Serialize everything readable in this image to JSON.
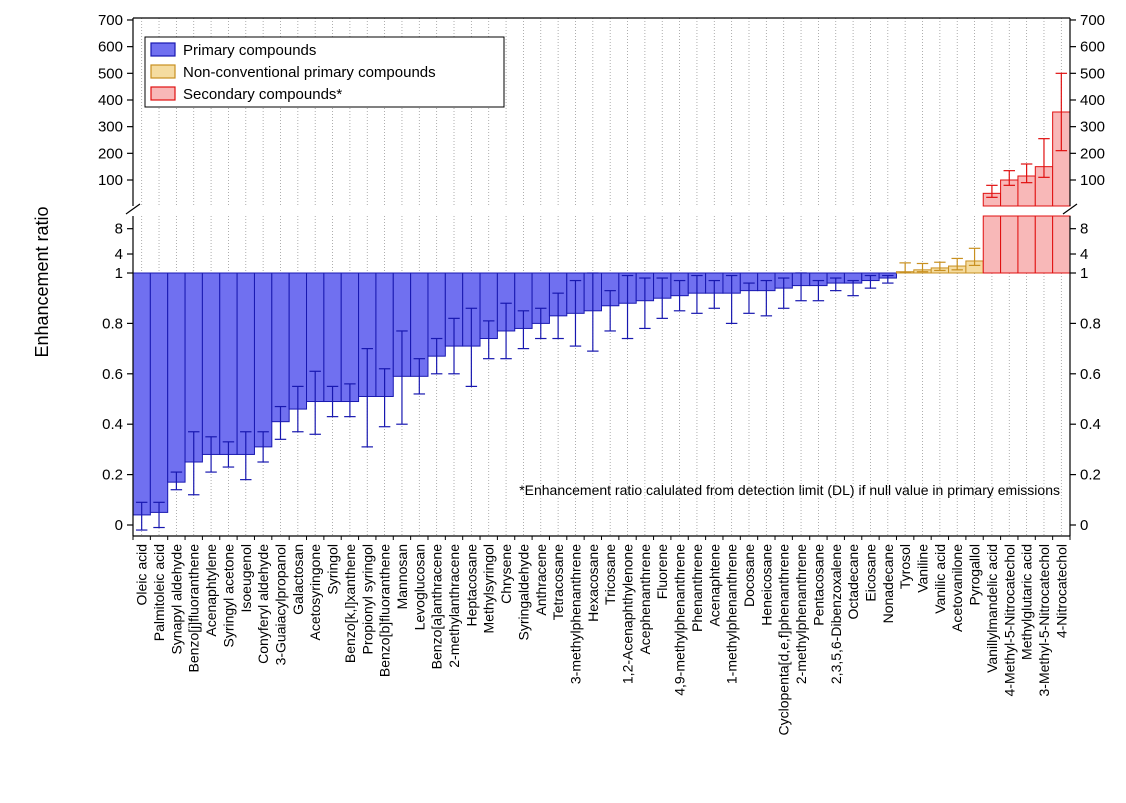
{
  "chart_data": {
    "type": "bar",
    "ylabel": "Enhancement ratio",
    "note": "*Enhancement ratio calulated from detection limit (DL) if null value in primary emissions",
    "yaxis": {
      "scale": "broken",
      "lower": {
        "range": [
          0,
          1
        ],
        "ticks": [
          0,
          0.2,
          0.4,
          0.6,
          0.8,
          1
        ],
        "tick_labels": [
          "0",
          "0.2",
          "0.4",
          "0.6",
          "0.8",
          "1"
        ]
      },
      "middle": {
        "range": [
          1,
          10
        ],
        "ticks": [
          4,
          8
        ],
        "tick_labels": [
          "4",
          "8"
        ]
      },
      "upper": {
        "range": [
          0,
          700
        ],
        "ticks": [
          100,
          200,
          300,
          400,
          500,
          600,
          700
        ],
        "tick_labels": [
          "100",
          "200",
          "300",
          "400",
          "500",
          "600",
          "700"
        ]
      }
    },
    "legend": {
      "position": "top-left",
      "entries": [
        {
          "label": "Primary compounds",
          "fill": "#7070f0",
          "stroke": "#1818b0"
        },
        {
          "label": "Non-conventional primary compounds",
          "fill": "#f5dca0",
          "stroke": "#c89020"
        },
        {
          "label": "Secondary compounds*",
          "fill": "#f8b8b8",
          "stroke": "#e01010"
        }
      ]
    },
    "groups": {
      "primary": {
        "fill": "#7070f0",
        "edge": "#1818b0",
        "err": "#1818b0"
      },
      "nonconv": {
        "fill": "#f5dca0",
        "edge": "#c89020",
        "err": "#c89020"
      },
      "secondary": {
        "fill": "#f8b8b8",
        "edge": "#e01010",
        "err": "#e01010"
      }
    },
    "categories": [
      "Oleic acid",
      "Palmitoleic acid",
      "Synapyl aldehyde",
      "Benzo[j]fluoranthene",
      "Acenaphtylene",
      "Syringyl acetone",
      "Isoeugenol",
      "Conyferyl aldehyde",
      "3-Guaiacylpropanol",
      "Galactosan",
      "Acetosyringone",
      "Syringol",
      "Benzo[k,l]xanthene",
      "Propionyl syringol",
      "Benzo[b]fluoranthene",
      "Mannosan",
      "Levoglucosan",
      "Benzo[a]anthracene",
      "2-methylanthracene",
      "Heptacosane",
      "Methylsyringol",
      "Chrysene",
      "Syringaldehyde",
      "Anthracene",
      "Tetracosane",
      "3-methylphenanthrene",
      "Hexacosane",
      "Tricosane",
      "1,2-Acenaphthylenone",
      "Acephenanthrene",
      "Fluorene",
      "4,9-methylphenanthrene",
      "Phenanthrene",
      "Acenaphtene",
      "1-methylphenanthrene",
      "Docosane",
      "Heneicosane",
      "Cyclopenta[d,e,f]phenanthrene",
      "2-methylphenanthrene",
      "Pentacosane",
      "2,3,5,6-Dibenzoxalene",
      "Octadecane",
      "Eicosane",
      "Nonadecane",
      "Tyrosol",
      "Vaniline",
      "Vanilic acid",
      "Acetovanilone",
      "Pyrogallol",
      "Vanillylmandelic acid",
      "4-Methyl-5-Nitrocatechol",
      "Methylglutaric acid",
      "3-Methyl-5-Nitrocatechol",
      "4-Nitrocatechol"
    ],
    "group": [
      "primary",
      "primary",
      "primary",
      "primary",
      "primary",
      "primary",
      "primary",
      "primary",
      "primary",
      "primary",
      "primary",
      "primary",
      "primary",
      "primary",
      "primary",
      "primary",
      "primary",
      "primary",
      "primary",
      "primary",
      "primary",
      "primary",
      "primary",
      "primary",
      "primary",
      "primary",
      "primary",
      "primary",
      "primary",
      "primary",
      "primary",
      "primary",
      "primary",
      "primary",
      "primary",
      "primary",
      "primary",
      "primary",
      "primary",
      "primary",
      "primary",
      "primary",
      "primary",
      "primary",
      "nonconv",
      "nonconv",
      "nonconv",
      "nonconv",
      "nonconv",
      "secondary",
      "secondary",
      "secondary",
      "secondary",
      "secondary"
    ],
    "values": [
      0.04,
      0.05,
      0.17,
      0.25,
      0.28,
      0.28,
      0.28,
      0.31,
      0.41,
      0.46,
      0.49,
      0.49,
      0.49,
      0.51,
      0.51,
      0.59,
      0.59,
      0.67,
      0.71,
      0.71,
      0.74,
      0.77,
      0.78,
      0.8,
      0.83,
      0.84,
      0.85,
      0.87,
      0.88,
      0.89,
      0.9,
      0.91,
      0.92,
      0.92,
      0.92,
      0.93,
      0.93,
      0.94,
      0.95,
      0.95,
      0.96,
      0.96,
      0.97,
      0.98,
      1.2,
      1.5,
      1.8,
      2.1,
      2.9,
      50,
      100,
      115,
      150,
      355
    ],
    "error_low": [
      -0.02,
      -0.01,
      0.14,
      0.12,
      0.21,
      0.23,
      0.18,
      0.25,
      0.34,
      0.37,
      0.36,
      0.43,
      0.43,
      0.31,
      0.39,
      0.4,
      0.52,
      0.6,
      0.6,
      0.55,
      0.66,
      0.66,
      0.7,
      0.74,
      0.74,
      0.71,
      0.69,
      0.77,
      0.74,
      0.78,
      0.82,
      0.85,
      0.84,
      0.86,
      0.8,
      0.84,
      0.83,
      0.86,
      0.89,
      0.89,
      0.93,
      0.91,
      0.94,
      0.96,
      1.1,
      1.2,
      1.4,
      1.5,
      2.2,
      35,
      80,
      90,
      110,
      210
    ],
    "error_high": [
      0.09,
      0.09,
      0.21,
      0.37,
      0.35,
      0.33,
      0.37,
      0.37,
      0.47,
      0.55,
      0.61,
      0.55,
      0.56,
      0.7,
      0.62,
      0.77,
      0.66,
      0.74,
      0.82,
      0.86,
      0.81,
      0.88,
      0.85,
      0.86,
      0.92,
      0.97,
      1.0,
      0.93,
      0.99,
      0.98,
      0.98,
      0.97,
      0.99,
      0.97,
      0.99,
      0.96,
      0.97,
      0.98,
      1.01,
      0.97,
      0.98,
      0.97,
      0.99,
      0.99,
      2.6,
      2.5,
      2.7,
      3.3,
      4.9,
      80,
      135,
      160,
      255,
      500
    ]
  }
}
